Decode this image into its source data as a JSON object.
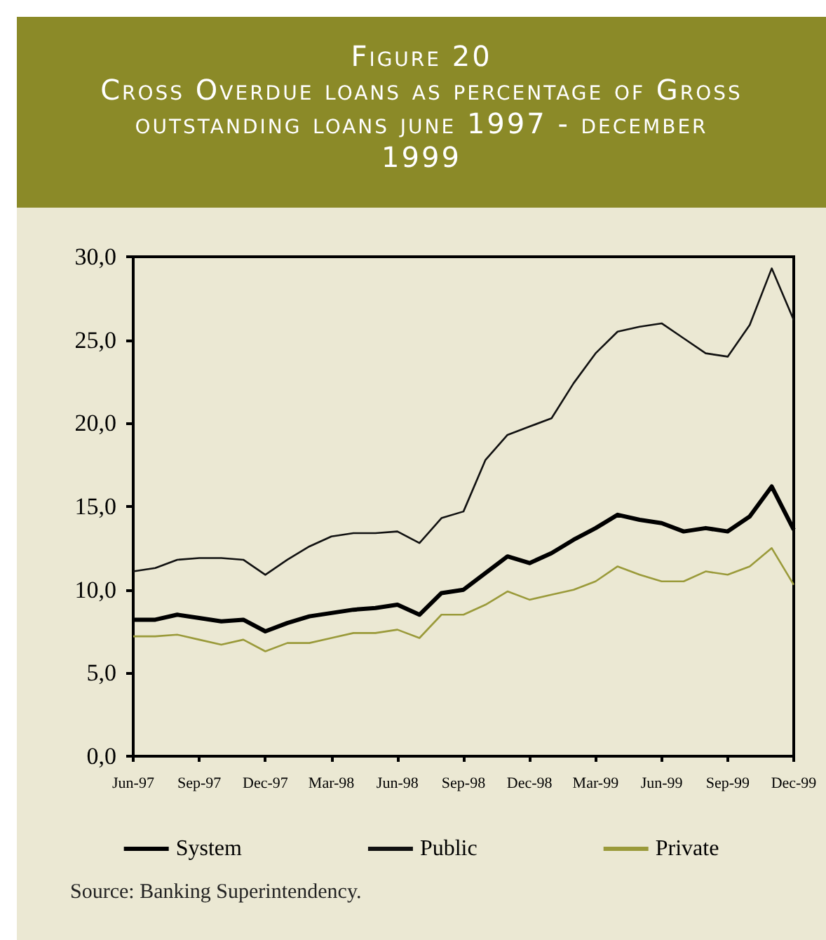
{
  "chart_data": {
    "type": "line",
    "title": "Figure 20",
    "subtitle": "Cross Overdue loans as percentage of Gross outstanding loans june 1997 - december 1999",
    "categories": [
      "Jun-97",
      null,
      null,
      "Sep-97",
      null,
      null,
      "Dec-97",
      null,
      null,
      "Mar-98",
      null,
      null,
      "Jun-98",
      null,
      null,
      "Sep-98",
      null,
      null,
      "Dec-98",
      null,
      null,
      "Mar-99",
      null,
      null,
      "Jun-99",
      null,
      null,
      "Sep-99",
      null,
      null,
      "Dec-99"
    ],
    "series": [
      {
        "name": "System",
        "color": "#000000",
        "values": [
          8.2,
          8.2,
          8.5,
          8.3,
          8.1,
          8.2,
          7.5,
          8.0,
          8.4,
          8.6,
          8.8,
          8.9,
          9.1,
          8.5,
          9.8,
          10.0,
          11.0,
          12.0,
          11.6,
          12.2,
          13.0,
          13.7,
          14.5,
          14.2,
          14.0,
          13.5,
          13.7,
          13.5,
          14.4,
          16.2,
          13.6
        ]
      },
      {
        "name": "Public",
        "color": "#111111",
        "values": [
          11.1,
          11.3,
          11.8,
          11.9,
          11.9,
          11.8,
          10.9,
          11.8,
          12.6,
          13.2,
          13.4,
          13.4,
          13.5,
          12.8,
          14.3,
          14.7,
          17.8,
          19.3,
          19.8,
          20.3,
          22.4,
          24.2,
          25.5,
          25.8,
          26.0,
          25.1,
          24.2,
          24.0,
          25.9,
          29.3,
          26.2
        ]
      },
      {
        "name": "Private",
        "color": "#9a9a3a",
        "values": [
          7.2,
          7.2,
          7.3,
          7.0,
          6.7,
          7.0,
          6.3,
          6.8,
          6.8,
          7.1,
          7.4,
          7.4,
          7.6,
          7.1,
          8.5,
          8.5,
          9.1,
          9.9,
          9.4,
          9.7,
          10.0,
          10.5,
          11.4,
          10.9,
          10.5,
          10.5,
          11.1,
          10.9,
          11.4,
          12.5,
          10.3
        ]
      }
    ],
    "ylim": [
      0,
      30
    ],
    "yticks": [
      {
        "value": 0,
        "label": "0,0"
      },
      {
        "value": 5,
        "label": "5,0"
      },
      {
        "value": 10,
        "label": "10,0"
      },
      {
        "value": 15,
        "label": "15,0"
      },
      {
        "value": 20,
        "label": "20,0"
      },
      {
        "value": 25,
        "label": "25,0"
      },
      {
        "value": 30,
        "label": "30,0"
      }
    ],
    "grid": false,
    "legend": "bottom",
    "marker": "none",
    "line_style": "solid",
    "annotations": [
      "Source: Banking Superintendency."
    ]
  }
}
